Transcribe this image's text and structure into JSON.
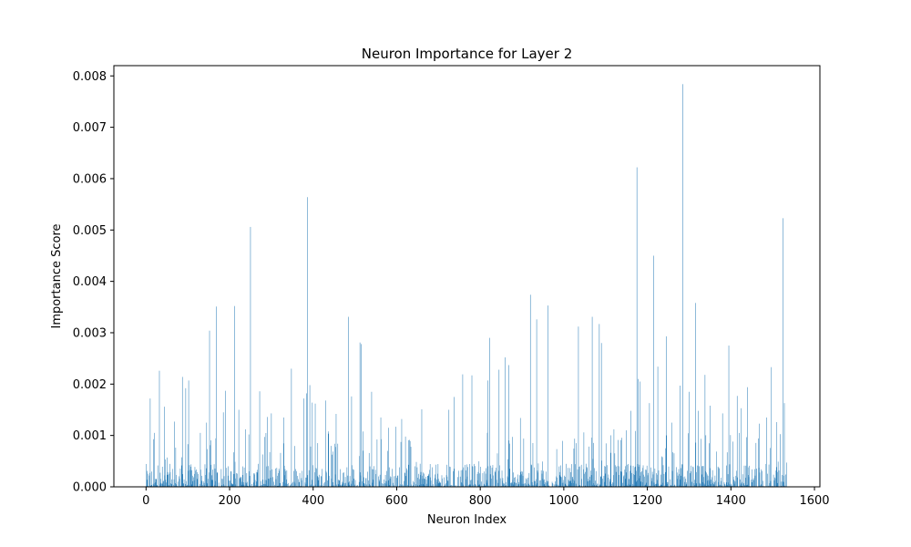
{
  "chart_data": {
    "type": "bar",
    "title": "Neuron Importance for Layer 2",
    "xlabel": "Neuron Index",
    "ylabel": "Importance Score",
    "xlim": [
      -77,
      1613
    ],
    "ylim": [
      0,
      0.0082
    ],
    "xticks": [
      0,
      200,
      400,
      600,
      800,
      1000,
      1200,
      1400,
      1600
    ],
    "yticks": [
      "0.000",
      "0.001",
      "0.002",
      "0.003",
      "0.004",
      "0.005",
      "0.006",
      "0.007",
      "0.008"
    ],
    "bar_color": "#1f77b4",
    "n_neurons": 1536,
    "grid": false,
    "legend": "none",
    "peaks": [
      {
        "x": 10,
        "y": 0.00172
      },
      {
        "x": 20,
        "y": 0.00105
      },
      {
        "x": 32,
        "y": 0.00226
      },
      {
        "x": 44,
        "y": 0.00156
      },
      {
        "x": 68,
        "y": 0.00127
      },
      {
        "x": 87,
        "y": 0.00214
      },
      {
        "x": 95,
        "y": 0.00192
      },
      {
        "x": 102,
        "y": 0.00207
      },
      {
        "x": 130,
        "y": 0.00105
      },
      {
        "x": 145,
        "y": 0.00125
      },
      {
        "x": 152,
        "y": 0.00304
      },
      {
        "x": 168,
        "y": 0.00351
      },
      {
        "x": 185,
        "y": 0.00145
      },
      {
        "x": 190,
        "y": 0.00187
      },
      {
        "x": 212,
        "y": 0.00352
      },
      {
        "x": 222,
        "y": 0.0015
      },
      {
        "x": 238,
        "y": 0.00112
      },
      {
        "x": 250,
        "y": 0.00506
      },
      {
        "x": 272,
        "y": 0.00186
      },
      {
        "x": 290,
        "y": 0.00136
      },
      {
        "x": 300,
        "y": 0.00143
      },
      {
        "x": 330,
        "y": 0.00135
      },
      {
        "x": 348,
        "y": 0.0023
      },
      {
        "x": 378,
        "y": 0.00172
      },
      {
        "x": 384,
        "y": 0.00182
      },
      {
        "x": 386,
        "y": 0.00564
      },
      {
        "x": 392,
        "y": 0.00198
      },
      {
        "x": 398,
        "y": 0.00164
      },
      {
        "x": 405,
        "y": 0.00162
      },
      {
        "x": 430,
        "y": 0.00168
      },
      {
        "x": 455,
        "y": 0.00142
      },
      {
        "x": 485,
        "y": 0.00331
      },
      {
        "x": 492,
        "y": 0.00176
      },
      {
        "x": 512,
        "y": 0.00281
      },
      {
        "x": 515,
        "y": 0.00278
      },
      {
        "x": 540,
        "y": 0.00185
      },
      {
        "x": 562,
        "y": 0.00135
      },
      {
        "x": 580,
        "y": 0.00115
      },
      {
        "x": 598,
        "y": 0.00117
      },
      {
        "x": 612,
        "y": 0.00132
      },
      {
        "x": 660,
        "y": 0.00151
      },
      {
        "x": 725,
        "y": 0.0015
      },
      {
        "x": 738,
        "y": 0.00175
      },
      {
        "x": 758,
        "y": 0.00219
      },
      {
        "x": 780,
        "y": 0.00217
      },
      {
        "x": 818,
        "y": 0.00207
      },
      {
        "x": 822,
        "y": 0.0029
      },
      {
        "x": 845,
        "y": 0.00228
      },
      {
        "x": 860,
        "y": 0.00252
      },
      {
        "x": 868,
        "y": 0.00237
      },
      {
        "x": 896,
        "y": 0.00134
      },
      {
        "x": 920,
        "y": 0.00374
      },
      {
        "x": 935,
        "y": 0.00326
      },
      {
        "x": 962,
        "y": 0.00353
      },
      {
        "x": 1035,
        "y": 0.00312
      },
      {
        "x": 1048,
        "y": 0.00106
      },
      {
        "x": 1068,
        "y": 0.00331
      },
      {
        "x": 1085,
        "y": 0.00317
      },
      {
        "x": 1090,
        "y": 0.0028
      },
      {
        "x": 1120,
        "y": 0.00112
      },
      {
        "x": 1150,
        "y": 0.0011
      },
      {
        "x": 1160,
        "y": 0.00148
      },
      {
        "x": 1175,
        "y": 0.00622
      },
      {
        "x": 1178,
        "y": 0.0021
      },
      {
        "x": 1183,
        "y": 0.00205
      },
      {
        "x": 1205,
        "y": 0.00163
      },
      {
        "x": 1215,
        "y": 0.0045
      },
      {
        "x": 1225,
        "y": 0.00234
      },
      {
        "x": 1245,
        "y": 0.00293
      },
      {
        "x": 1258,
        "y": 0.00125
      },
      {
        "x": 1278,
        "y": 0.00197
      },
      {
        "x": 1285,
        "y": 0.00784
      },
      {
        "x": 1300,
        "y": 0.00185
      },
      {
        "x": 1315,
        "y": 0.00358
      },
      {
        "x": 1322,
        "y": 0.00148
      },
      {
        "x": 1338,
        "y": 0.00218
      },
      {
        "x": 1350,
        "y": 0.00158
      },
      {
        "x": 1380,
        "y": 0.00143
      },
      {
        "x": 1395,
        "y": 0.00275
      },
      {
        "x": 1415,
        "y": 0.00177
      },
      {
        "x": 1425,
        "y": 0.00153
      },
      {
        "x": 1440,
        "y": 0.00194
      },
      {
        "x": 1468,
        "y": 0.00123
      },
      {
        "x": 1485,
        "y": 0.00135
      },
      {
        "x": 1497,
        "y": 0.00233
      },
      {
        "x": 1510,
        "y": 0.00126
      },
      {
        "x": 1525,
        "y": 0.00523
      },
      {
        "x": 1528,
        "y": 0.00163
      }
    ]
  }
}
